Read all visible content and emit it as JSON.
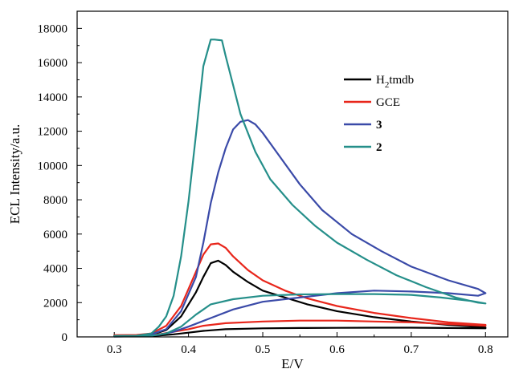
{
  "chart_data": {
    "type": "line",
    "xlabel": "E/V",
    "ylabel": "ECL Intensity/a.u.",
    "xlim": [
      0.25,
      0.83
    ],
    "ylim": [
      0,
      19000
    ],
    "xticks": [
      0.3,
      0.4,
      0.5,
      0.6,
      0.7,
      0.8
    ],
    "xtick_labels": [
      "0.3",
      "0.4",
      "0.5",
      "0.6",
      "0.7",
      "0.8"
    ],
    "yticks": [
      0,
      2000,
      4000,
      6000,
      8000,
      10000,
      12000,
      14000,
      16000,
      18000
    ],
    "ytick_labels": [
      "0",
      "2000",
      "4000",
      "6000",
      "8000",
      "10000",
      "12000",
      "14000",
      "16000",
      "18000"
    ],
    "grid": false,
    "legend_position": "top-right",
    "series": [
      {
        "legend_base": "H",
        "legend_sub": "2",
        "legend_rest": "tmdb",
        "bold": false,
        "color": "#000000",
        "x": [
          0.3,
          0.33,
          0.35,
          0.37,
          0.39,
          0.41,
          0.42,
          0.43,
          0.44,
          0.45,
          0.46,
          0.48,
          0.5,
          0.53,
          0.56,
          0.6,
          0.65,
          0.7,
          0.75,
          0.8,
          0.8,
          0.75,
          0.7,
          0.65,
          0.6,
          0.55,
          0.5,
          0.45,
          0.42,
          0.4,
          0.38,
          0.36,
          0.34,
          0.3
        ],
        "y": [
          50,
          60,
          120,
          400,
          1200,
          2600,
          3500,
          4300,
          4450,
          4200,
          3800,
          3200,
          2700,
          2300,
          1900,
          1500,
          1150,
          900,
          700,
          550,
          500,
          520,
          540,
          540,
          530,
          520,
          500,
          450,
          350,
          250,
          150,
          80,
          50,
          30
        ]
      },
      {
        "legend_base": "GCE",
        "legend_sub": "",
        "legend_rest": "",
        "bold": false,
        "color": "#e8261b",
        "x": [
          0.3,
          0.33,
          0.35,
          0.37,
          0.39,
          0.41,
          0.42,
          0.43,
          0.44,
          0.45,
          0.46,
          0.48,
          0.5,
          0.53,
          0.56,
          0.6,
          0.65,
          0.7,
          0.75,
          0.8,
          0.8,
          0.75,
          0.7,
          0.65,
          0.6,
          0.55,
          0.5,
          0.45,
          0.42,
          0.4,
          0.38,
          0.36,
          0.34,
          0.3
        ],
        "y": [
          100,
          110,
          200,
          650,
          1800,
          3800,
          4800,
          5400,
          5450,
          5200,
          4700,
          3900,
          3300,
          2700,
          2250,
          1800,
          1400,
          1100,
          850,
          700,
          650,
          750,
          850,
          900,
          950,
          950,
          900,
          800,
          650,
          450,
          300,
          150,
          80,
          60
        ]
      },
      {
        "legend_base": "3",
        "legend_sub": "",
        "legend_rest": "",
        "bold": true,
        "color": "#3a4aa8",
        "x": [
          0.3,
          0.33,
          0.35,
          0.37,
          0.39,
          0.41,
          0.42,
          0.43,
          0.44,
          0.45,
          0.46,
          0.47,
          0.48,
          0.49,
          0.5,
          0.52,
          0.55,
          0.58,
          0.62,
          0.66,
          0.7,
          0.75,
          0.79,
          0.8,
          0.79,
          0.75,
          0.7,
          0.65,
          0.6,
          0.55,
          0.5,
          0.46,
          0.43,
          0.4,
          0.38,
          0.36,
          0.34,
          0.3
        ],
        "y": [
          30,
          50,
          150,
          450,
          1500,
          3500,
          5500,
          7800,
          9600,
          11000,
          12100,
          12550,
          12650,
          12400,
          11900,
          10700,
          8900,
          7400,
          6000,
          5000,
          4100,
          3300,
          2800,
          2550,
          2400,
          2550,
          2650,
          2700,
          2550,
          2300,
          2050,
          1600,
          1100,
          600,
          300,
          120,
          50,
          20
        ]
      },
      {
        "legend_base": "2",
        "legend_sub": "",
        "legend_rest": "",
        "bold": true,
        "color": "#258f8a",
        "x": [
          0.3,
          0.33,
          0.35,
          0.36,
          0.37,
          0.38,
          0.39,
          0.4,
          0.41,
          0.42,
          0.43,
          0.435,
          0.445,
          0.45,
          0.46,
          0.47,
          0.49,
          0.51,
          0.54,
          0.57,
          0.6,
          0.64,
          0.68,
          0.72,
          0.76,
          0.79,
          0.8,
          0.78,
          0.74,
          0.7,
          0.65,
          0.6,
          0.55,
          0.5,
          0.46,
          0.43,
          0.41,
          0.39,
          0.37,
          0.35,
          0.3
        ],
        "y": [
          60,
          70,
          200,
          600,
          1200,
          2400,
          4700,
          7900,
          11800,
          15800,
          17350,
          17350,
          17300,
          16400,
          14700,
          13000,
          10800,
          9200,
          7700,
          6500,
          5500,
          4500,
          3600,
          2900,
          2300,
          2000,
          1950,
          2100,
          2300,
          2450,
          2500,
          2500,
          2480,
          2400,
          2200,
          1900,
          1300,
          600,
          200,
          70,
          30
        ]
      }
    ]
  }
}
